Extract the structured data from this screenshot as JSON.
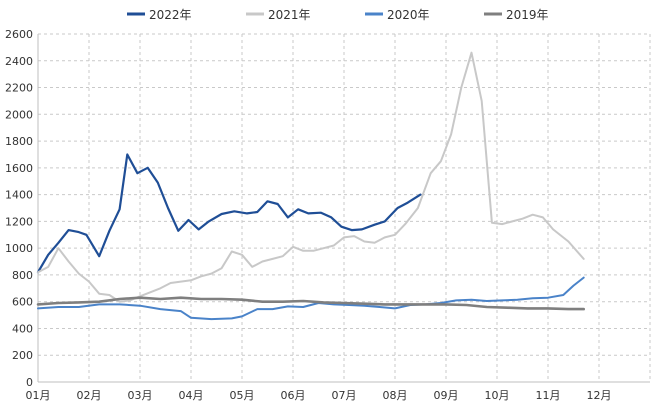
{
  "chart_data": {
    "type": "line",
    "title": "",
    "xlabel": "",
    "ylabel": "",
    "ylim": [
      0,
      2600
    ],
    "y_ticks": [
      0,
      200,
      400,
      600,
      800,
      1000,
      1200,
      1400,
      1600,
      1800,
      2000,
      2200,
      2400,
      2600
    ],
    "x_ticks": [
      "01月",
      "02月",
      "03月",
      "04月",
      "05月",
      "06月",
      "07月",
      "08月",
      "09月",
      "10月",
      "11月",
      "12月"
    ],
    "x_range_months": [
      1,
      13
    ],
    "grid": "dashed",
    "legend_position": "top",
    "series": [
      {
        "name": "2022年",
        "color": "#1f4e96",
        "points": [
          [
            1.0,
            820
          ],
          [
            1.2,
            950
          ],
          [
            1.4,
            1040
          ],
          [
            1.6,
            1135
          ],
          [
            1.8,
            1120
          ],
          [
            1.95,
            1100
          ],
          [
            2.2,
            940
          ],
          [
            2.4,
            1130
          ],
          [
            2.6,
            1290
          ],
          [
            2.75,
            1700
          ],
          [
            2.95,
            1560
          ],
          [
            3.15,
            1600
          ],
          [
            3.35,
            1490
          ],
          [
            3.55,
            1300
          ],
          [
            3.75,
            1130
          ],
          [
            3.95,
            1210
          ],
          [
            4.15,
            1140
          ],
          [
            4.35,
            1200
          ],
          [
            4.6,
            1255
          ],
          [
            4.85,
            1275
          ],
          [
            5.1,
            1260
          ],
          [
            5.3,
            1270
          ],
          [
            5.5,
            1350
          ],
          [
            5.7,
            1330
          ],
          [
            5.9,
            1230
          ],
          [
            6.1,
            1290
          ],
          [
            6.3,
            1260
          ],
          [
            6.55,
            1265
          ],
          [
            6.75,
            1230
          ],
          [
            6.95,
            1160
          ],
          [
            7.15,
            1135
          ],
          [
            7.35,
            1140
          ],
          [
            7.6,
            1175
          ],
          [
            7.8,
            1200
          ],
          [
            8.05,
            1300
          ],
          [
            8.25,
            1340
          ],
          [
            8.5,
            1400
          ]
        ]
      },
      {
        "name": "2021年",
        "color": "#c8c8c8",
        "points": [
          [
            1.0,
            820
          ],
          [
            1.2,
            860
          ],
          [
            1.4,
            1000
          ],
          [
            1.6,
            900
          ],
          [
            1.8,
            810
          ],
          [
            2.0,
            750
          ],
          [
            2.2,
            660
          ],
          [
            2.4,
            650
          ],
          [
            2.6,
            600
          ],
          [
            2.8,
            610
          ],
          [
            3.0,
            640
          ],
          [
            3.2,
            670
          ],
          [
            3.4,
            700
          ],
          [
            3.6,
            740
          ],
          [
            3.8,
            750
          ],
          [
            4.0,
            760
          ],
          [
            4.2,
            790
          ],
          [
            4.4,
            810
          ],
          [
            4.6,
            850
          ],
          [
            4.8,
            975
          ],
          [
            5.0,
            950
          ],
          [
            5.2,
            860
          ],
          [
            5.4,
            900
          ],
          [
            5.6,
            920
          ],
          [
            5.8,
            940
          ],
          [
            6.0,
            1010
          ],
          [
            6.2,
            980
          ],
          [
            6.4,
            980
          ],
          [
            6.6,
            1000
          ],
          [
            6.8,
            1020
          ],
          [
            7.0,
            1080
          ],
          [
            7.2,
            1090
          ],
          [
            7.4,
            1050
          ],
          [
            7.6,
            1040
          ],
          [
            7.8,
            1080
          ],
          [
            8.0,
            1100
          ],
          [
            8.2,
            1180
          ],
          [
            8.45,
            1300
          ],
          [
            8.7,
            1560
          ],
          [
            8.9,
            1650
          ],
          [
            9.1,
            1850
          ],
          [
            9.3,
            2200
          ],
          [
            9.5,
            2460
          ],
          [
            9.7,
            2100
          ],
          [
            9.9,
            1190
          ],
          [
            10.1,
            1180
          ],
          [
            10.3,
            1200
          ],
          [
            10.5,
            1220
          ],
          [
            10.7,
            1250
          ],
          [
            10.9,
            1230
          ],
          [
            11.1,
            1140
          ],
          [
            11.4,
            1050
          ],
          [
            11.7,
            920
          ]
        ]
      },
      {
        "name": "2020年",
        "color": "#4a83c9",
        "points": [
          [
            1.0,
            550
          ],
          [
            1.4,
            560
          ],
          [
            1.8,
            560
          ],
          [
            2.2,
            580
          ],
          [
            2.6,
            580
          ],
          [
            3.0,
            570
          ],
          [
            3.4,
            545
          ],
          [
            3.8,
            530
          ],
          [
            4.0,
            480
          ],
          [
            4.4,
            470
          ],
          [
            4.8,
            475
          ],
          [
            5.0,
            490
          ],
          [
            5.3,
            545
          ],
          [
            5.6,
            545
          ],
          [
            5.9,
            565
          ],
          [
            6.2,
            560
          ],
          [
            6.5,
            590
          ],
          [
            6.8,
            580
          ],
          [
            7.1,
            575
          ],
          [
            7.4,
            570
          ],
          [
            7.7,
            560
          ],
          [
            8.0,
            550
          ],
          [
            8.3,
            575
          ],
          [
            8.6,
            580
          ],
          [
            8.9,
            590
          ],
          [
            9.2,
            610
          ],
          [
            9.5,
            615
          ],
          [
            9.8,
            605
          ],
          [
            10.1,
            610
          ],
          [
            10.4,
            615
          ],
          [
            10.7,
            625
          ],
          [
            11.0,
            630
          ],
          [
            11.3,
            650
          ],
          [
            11.5,
            720
          ],
          [
            11.7,
            780
          ]
        ]
      },
      {
        "name": "2019年",
        "color": "#7f7f7f",
        "points": [
          [
            1.0,
            580
          ],
          [
            1.4,
            590
          ],
          [
            1.8,
            595
          ],
          [
            2.2,
            600
          ],
          [
            2.6,
            620
          ],
          [
            3.0,
            630
          ],
          [
            3.4,
            620
          ],
          [
            3.8,
            630
          ],
          [
            4.2,
            620
          ],
          [
            4.6,
            620
          ],
          [
            5.0,
            615
          ],
          [
            5.4,
            600
          ],
          [
            5.8,
            600
          ],
          [
            6.2,
            605
          ],
          [
            6.6,
            595
          ],
          [
            7.0,
            590
          ],
          [
            7.4,
            585
          ],
          [
            7.8,
            580
          ],
          [
            8.2,
            580
          ],
          [
            8.6,
            580
          ],
          [
            9.0,
            580
          ],
          [
            9.4,
            575
          ],
          [
            9.8,
            560
          ],
          [
            10.2,
            555
          ],
          [
            10.6,
            550
          ],
          [
            11.0,
            550
          ],
          [
            11.4,
            545
          ],
          [
            11.7,
            545
          ]
        ]
      }
    ]
  }
}
